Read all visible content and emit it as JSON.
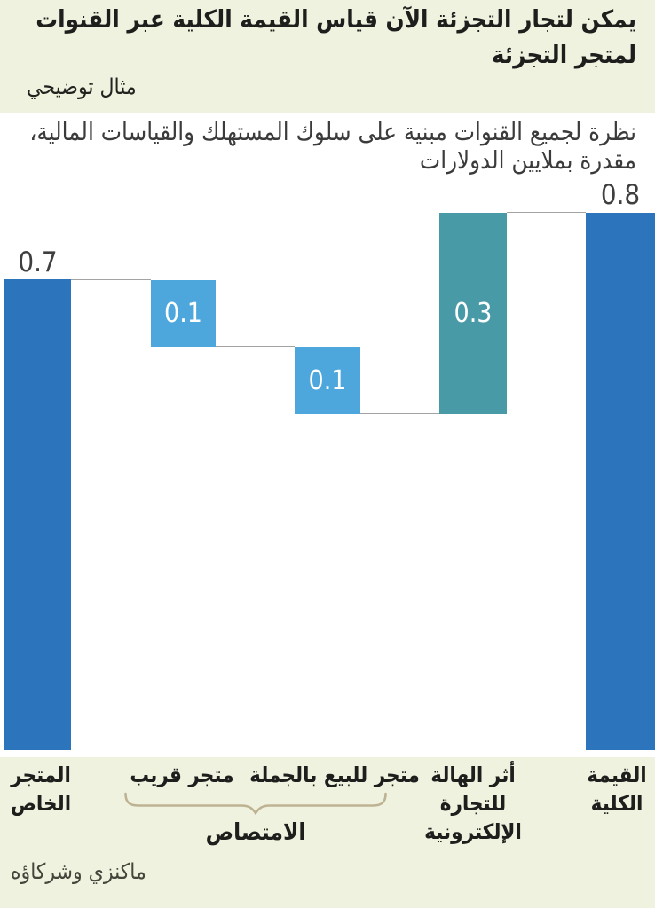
{
  "header": {
    "title": "يمكن لتجار التجزئة الآن قياس القيمة الكلية عبر القنوات لمتجر التجزئة",
    "title_lines": [
      "يمكن لتجار التجزئة الآن قياس القيمة الكلية عبر القنوات",
      "لمتجر التجزئة"
    ],
    "subtitle": "مثال توضيحي"
  },
  "description": {
    "text": "نظرة لجميع القنوات مبنية على سلوك المستهلك والقياسات المالية، مقدرة بملايين الدولارات",
    "lines": [
      "نظرة لجميع القنوات مبنية على سلوك المستهلك والقياسات المالية،",
      "مقدرة بملايين الدولارات"
    ]
  },
  "chart_data": {
    "type": "waterfall",
    "title": "يمكن لتجار التجزئة الآن قياس القيمة الكلية عبر القنوات لمتجر التجزئة",
    "subtitle": "مثال توضيحي",
    "unit_note": "مقدرة بملايين الدولارات",
    "categories": [
      "المتجر الخاص",
      "متجر قريب",
      "متجر للبيع بالجملة",
      "أثر الهالة للتجارة الإلكترونية",
      "القيمة الكلية"
    ],
    "categories_lines": [
      [
        "المتجر",
        "الخاص"
      ],
      [
        "متجر قريب"
      ],
      [
        "متجر للبيع بالجملة"
      ],
      [
        "أثر الهالة",
        "للتجارة",
        "الإلكترونية"
      ],
      [
        "القيمة",
        "الكلية"
      ]
    ],
    "values": [
      0.7,
      -0.1,
      -0.1,
      0.3,
      0.8
    ],
    "bar_roles": [
      "start",
      "decrease",
      "decrease",
      "increase",
      "total"
    ],
    "bar_value_labels": [
      "0.7",
      "0.1",
      "0.1",
      "0.3",
      "0.8"
    ],
    "ylim": [
      0,
      0.85
    ],
    "grid": false,
    "colors": {
      "start_total_bars": "#2c74bb",
      "decrease_bars": "#4da6dc",
      "increase_bar": "#489aa6",
      "connector": "#a3a3a3",
      "brace": "#bdb392",
      "background_panel": "#ffffff",
      "background_page": "#f0f2e0"
    },
    "group_annotation": {
      "label": "الامتصاص",
      "covers": [
        "متجر قريب",
        "متجر للبيع بالجملة"
      ]
    }
  },
  "source": {
    "text": "ماكنزي وشركاؤه"
  }
}
